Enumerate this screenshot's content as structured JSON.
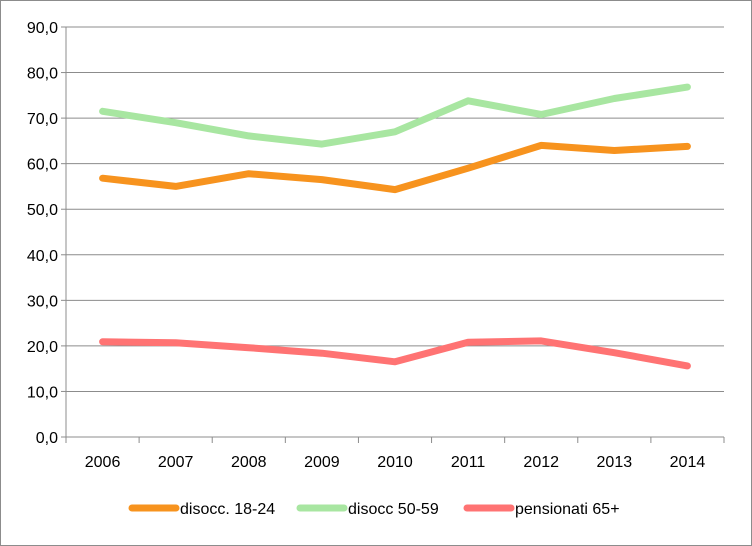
{
  "chart_data": {
    "type": "line",
    "title": "",
    "xlabel": "",
    "ylabel": "",
    "categories": [
      "2006",
      "2007",
      "2008",
      "2009",
      "2010",
      "2011",
      "2012",
      "2013",
      "2014"
    ],
    "ylim": [
      0,
      90
    ],
    "yticks": [
      0,
      10,
      20,
      30,
      40,
      50,
      60,
      70,
      80,
      90
    ],
    "ytick_labels": [
      "0,0",
      "10,0",
      "20,0",
      "30,0",
      "40,0",
      "50,0",
      "60,0",
      "70,0",
      "80,0",
      "90,0"
    ],
    "grid": true,
    "legend_position": "bottom",
    "series": [
      {
        "name": "disocc. 18-24",
        "color": "#f7931e",
        "values": [
          56.8,
          55.0,
          57.8,
          56.5,
          54.3,
          59.0,
          64.0,
          62.9,
          63.8
        ]
      },
      {
        "name": "disocc 50-59",
        "color": "#a8e6a1",
        "values": [
          71.5,
          69.0,
          66.1,
          64.3,
          67.0,
          73.8,
          70.8,
          74.3,
          76.8
        ]
      },
      {
        "name": "pensionati 65+",
        "color": "#ff7373",
        "values": [
          20.9,
          20.7,
          19.6,
          18.4,
          16.5,
          20.8,
          21.1,
          18.5,
          15.6
        ]
      }
    ]
  }
}
